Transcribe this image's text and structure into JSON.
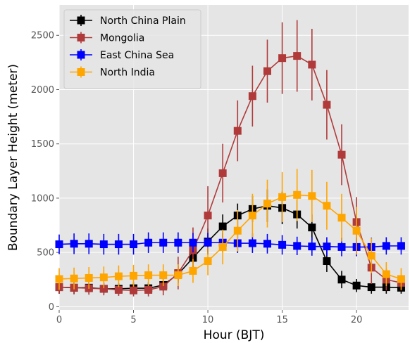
{
  "chart_data": {
    "type": "line",
    "title": "",
    "xlabel": "Hour (BJT)",
    "ylabel": "Boundary Layer Height (meter)",
    "xlim": [
      0,
      23.5
    ],
    "ylim": [
      -30,
      2780
    ],
    "x_ticks": [
      0,
      5,
      10,
      15,
      20
    ],
    "y_ticks": [
      0,
      500,
      1000,
      1500,
      2000,
      2500
    ],
    "grid": true,
    "background": "#e5e5e5",
    "legend_position": "top-left",
    "x": [
      0,
      1,
      2,
      3,
      4,
      5,
      6,
      7,
      8,
      9,
      10,
      11,
      12,
      13,
      14,
      15,
      16,
      17,
      18,
      19,
      20,
      21,
      22,
      23
    ],
    "series": [
      {
        "name": "North China Plain",
        "color": "#000000",
        "values": [
          180,
          175,
          175,
          165,
          165,
          170,
          170,
          200,
          300,
          450,
          600,
          740,
          840,
          900,
          930,
          910,
          850,
          730,
          420,
          250,
          195,
          180,
          180,
          175
        ],
        "errors": [
          60,
          60,
          55,
          50,
          50,
          55,
          55,
          60,
          80,
          110,
          120,
          110,
          110,
          120,
          150,
          150,
          130,
          120,
          100,
          80,
          60,
          60,
          60,
          55
        ]
      },
      {
        "name": "Mongolia",
        "color": "#b03a3a",
        "values": [
          180,
          175,
          170,
          165,
          155,
          150,
          155,
          185,
          310,
          520,
          840,
          1230,
          1620,
          1940,
          2170,
          2290,
          2310,
          2230,
          1860,
          1400,
          780,
          360,
          250,
          220
        ],
        "errors": [
          60,
          60,
          60,
          60,
          55,
          55,
          60,
          80,
          150,
          210,
          270,
          270,
          280,
          280,
          290,
          330,
          330,
          330,
          320,
          280,
          230,
          150,
          100,
          70
        ]
      },
      {
        "name": "East China Sea",
        "color": "#0000ff",
        "values": [
          575,
          580,
          580,
          575,
          575,
          575,
          590,
          590,
          590,
          590,
          590,
          590,
          585,
          585,
          580,
          570,
          560,
          555,
          555,
          550,
          550,
          550,
          560,
          560
        ],
        "errors": [
          90,
          95,
          95,
          95,
          95,
          95,
          95,
          95,
          95,
          90,
          90,
          90,
          90,
          90,
          90,
          90,
          85,
          85,
          85,
          85,
          85,
          85,
          80,
          80
        ]
      },
      {
        "name": "North India",
        "color": "#ffa500",
        "values": [
          255,
          260,
          265,
          270,
          280,
          285,
          290,
          290,
          290,
          330,
          420,
          550,
          700,
          840,
          950,
          1010,
          1030,
          1020,
          930,
          820,
          700,
          470,
          300,
          255
        ],
        "errors": [
          100,
          100,
          100,
          100,
          100,
          100,
          100,
          100,
          100,
          110,
          130,
          160,
          190,
          200,
          220,
          230,
          240,
          240,
          220,
          220,
          220,
          160,
          110,
          100
        ]
      }
    ]
  }
}
